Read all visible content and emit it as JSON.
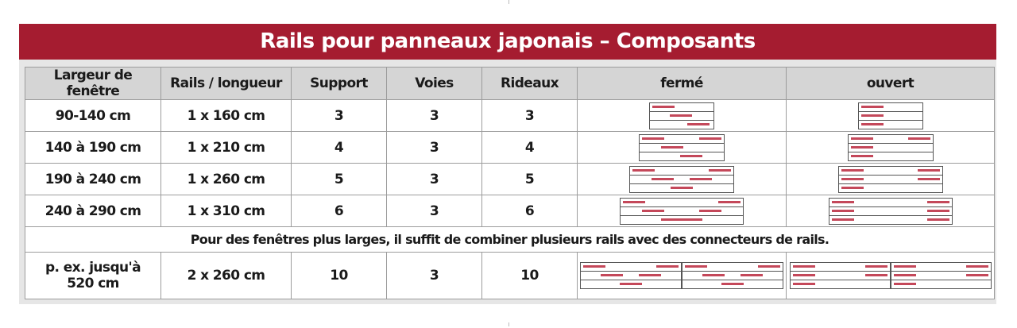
{
  "title": "Rails pour panneaux japonais – Composants",
  "headers": [
    "Largeur de fenêtre",
    "Rails / longueur",
    "Support",
    "Voies",
    "Rideaux",
    "fermé",
    "ouvert"
  ],
  "rows": [
    {
      "width": "90-140 cm",
      "rails": "1 x 160 cm",
      "support": "3",
      "voies": "3",
      "rideaux": "3"
    },
    {
      "width": "140 à 190 cm",
      "rails": "1 x 210 cm",
      "support": "4",
      "voies": "3",
      "rideaux": "4"
    },
    {
      "width": "190 à 240 cm",
      "rails": "1 x 260 cm",
      "support": "5",
      "voies": "3",
      "rideaux": "5"
    },
    {
      "width": "240 à 290 cm",
      "rails": "1 x 310 cm",
      "support": "6",
      "voies": "3",
      "rideaux": "6"
    }
  ],
  "note": "Pour des fenêtres plus larges, il suffit de combiner plusieurs rails avec des connecteurs de rails.",
  "example": {
    "width_line1": "p. ex. jusqu'à",
    "width_line2": "520 cm",
    "rails": "2 x 260 cm",
    "support": "10",
    "voies": "3",
    "rideaux": "10"
  },
  "colors": {
    "title_bg": "#a51c30",
    "panel": "#c4485a",
    "header_bg": "#d5d5d5"
  }
}
